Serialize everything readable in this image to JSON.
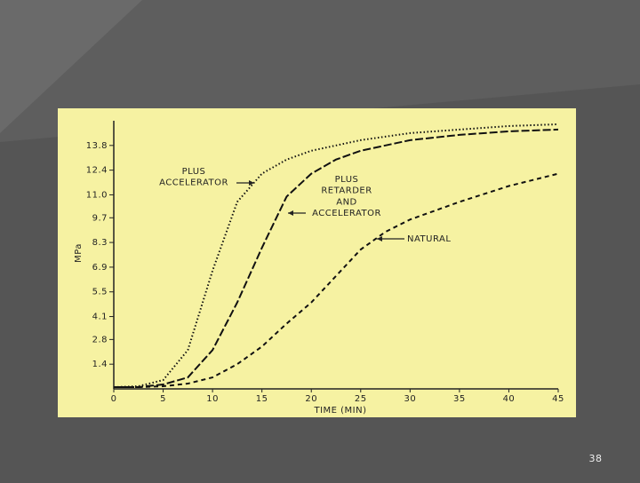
{
  "chart_data": {
    "type": "line",
    "y_label": "MPa",
    "x_label": "TIME (MIN)",
    "x": [
      0,
      2.5,
      5,
      7.5,
      10,
      12.5,
      15,
      17.5,
      20,
      22.5,
      25,
      27.5,
      30,
      35,
      40,
      45
    ],
    "series": [
      {
        "color": "#111111",
        "dash": "1.5 2.5",
        "values": [
          0.1,
          0.15,
          0.5,
          2.2,
          6.7,
          10.6,
          12.2,
          13.0,
          13.5,
          13.8,
          14.1,
          14.3,
          14.5,
          14.7,
          14.9,
          15.0
        ]
      },
      {
        "color": "#111111",
        "dash": "9 3",
        "values": [
          0.1,
          0.1,
          0.25,
          0.65,
          2.2,
          4.9,
          8.0,
          10.9,
          12.2,
          13.0,
          13.5,
          13.8,
          14.1,
          14.4,
          14.6,
          14.7
        ]
      },
      {
        "color": "#111111",
        "dash": "5 4",
        "values": [
          0.1,
          0.1,
          0.15,
          0.3,
          0.65,
          1.4,
          2.4,
          3.7,
          4.9,
          6.4,
          7.9,
          8.9,
          9.6,
          10.6,
          11.5,
          12.2
        ]
      }
    ],
    "annotations": [
      {
        "lines": [
          "PLUS",
          "ACCELERATOR"
        ]
      },
      {
        "lines": [
          "PLUS",
          "RETARDER",
          "AND",
          "ACCELERATOR"
        ]
      },
      {
        "lines": [
          "NATURAL"
        ]
      }
    ],
    "xlim": [
      0,
      45
    ],
    "xticks": [
      0,
      5,
      10,
      15,
      20,
      25,
      30,
      35,
      40,
      45
    ],
    "ylim": [
      0,
      15.2
    ],
    "yticks": [
      1.4,
      2.8,
      4.1,
      5.5,
      6.9,
      8.3,
      9.7,
      {
        "value": 11,
        "label": "11.0"
      },
      12.4,
      13.8
    ]
  },
  "slide_number": "38"
}
